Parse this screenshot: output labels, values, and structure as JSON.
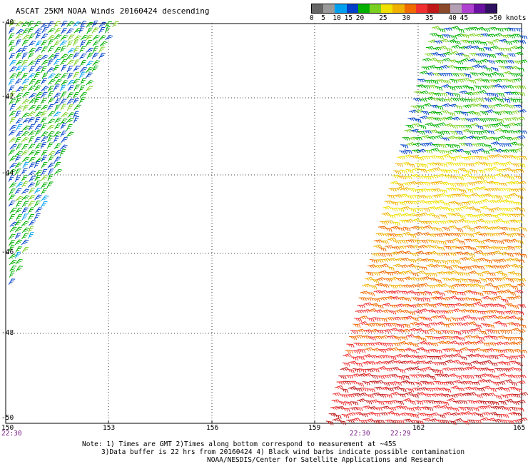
{
  "title": "ASCAT 25KM NOAA Winds 20160424 descending",
  "legend": {
    "unit_label": ">50 knots",
    "bins": [
      {
        "label": "0",
        "color": "#666666"
      },
      {
        "label": "5",
        "color": "#9a9a9a"
      },
      {
        "label": "10",
        "color": "#00a0f0"
      },
      {
        "label": "15",
        "color": "#0040c8"
      },
      {
        "label": "20",
        "color": "#00b000"
      },
      {
        "label": "",
        "color": "#7ad020"
      },
      {
        "label": "25",
        "color": "#f0e000"
      },
      {
        "label": "",
        "color": "#f0b000"
      },
      {
        "label": "30",
        "color": "#f06a00"
      },
      {
        "label": "",
        "color": "#f03030"
      },
      {
        "label": "35",
        "color": "#c01818"
      },
      {
        "label": "",
        "color": "#8a4a2a"
      },
      {
        "label": "40",
        "color": "#b4a0b4"
      },
      {
        "label": "45",
        "color": "#b040d0"
      },
      {
        "label": "",
        "color": "#6a10a0"
      },
      {
        "label": "",
        "color": "#301060"
      }
    ]
  },
  "axes": {
    "lat_labels": [
      "-40",
      "-42",
      "-44",
      "-46",
      "-48",
      "-50"
    ],
    "lon_labels": [
      "150",
      "153",
      "156",
      "159",
      "162",
      "165"
    ]
  },
  "times": [
    {
      "label": "22:30"
    },
    {
      "label": "22:30"
    },
    {
      "label": "22:29"
    }
  ],
  "notes": [
    "Note: 1) Times are GMT 2)Times along bottom correspond to measurement at ~45S",
    "3)Data buffer is 22 hrs from 20160424 4) Black wind barbs indicate possible contamination",
    "NOAA/NESDIS/Center for Satellite Applications and Research"
  ],
  "swaths": {
    "west": {
      "description_colors": [
        "#00b000",
        "#0040c8",
        "#00a0f0",
        "#7ad020"
      ]
    },
    "east": {
      "description_colors": [
        "#00b000",
        "#7ad020",
        "#f0e000",
        "#f0b000",
        "#f06a00",
        "#f03030",
        "#c01818"
      ]
    }
  }
}
